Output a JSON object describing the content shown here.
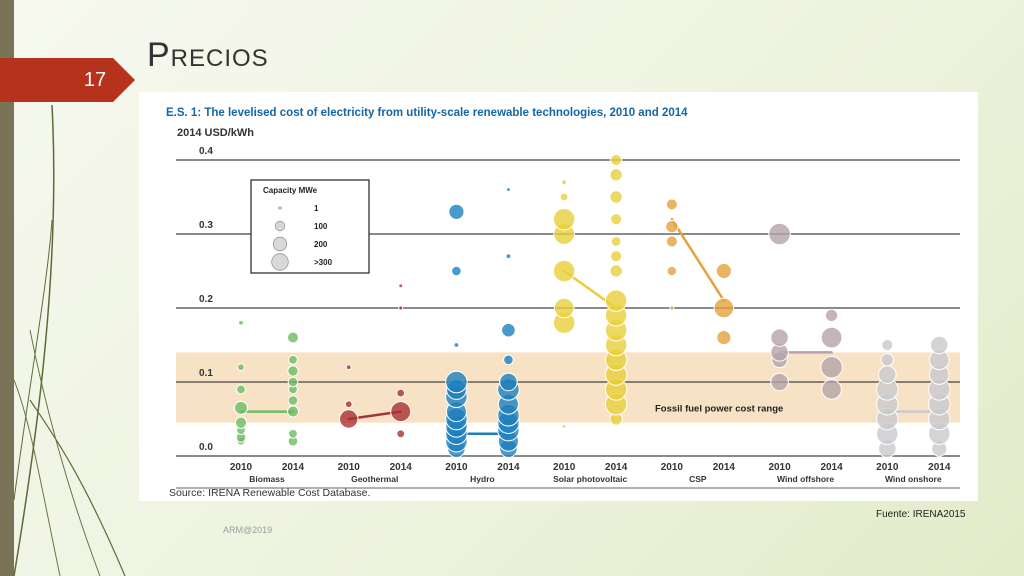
{
  "slide": {
    "number": "17",
    "title": "Precios",
    "footer": "ARM@2019",
    "source_note": "Fuente: IRENA2015"
  },
  "colors": {
    "biomass": "#6dbb62",
    "geothermal": "#a83232",
    "hydro": "#1b7fbd",
    "solar_pv": "#e8cf3a",
    "csp": "#e3a23c",
    "wind_offshore": "#b5a3a8",
    "wind_onshore": "#c9c9cc",
    "fossil_band": "#f8e2c6",
    "title_blue": "#1466a6",
    "accent_red": "#b6321d"
  },
  "chart_data": {
    "type": "scatter",
    "title": "E.S. 1: The levelised cost of electricity from utility-scale renewable technologies, 2010 and 2014",
    "ylabel": "2014 USD/kWh",
    "ylim": [
      0,
      0.4
    ],
    "yticks": [
      "0.0",
      "0.1",
      "0.2",
      "0.3",
      "0.4"
    ],
    "grid": true,
    "source": "Source: IRENA Renewable Cost Database.",
    "band": {
      "label": "Fossil fuel power cost range",
      "from": 0.045,
      "to": 0.14
    },
    "legend": {
      "title": "Capacity MWe",
      "position": "top-left",
      "items": [
        {
          "label": "1",
          "size": 1
        },
        {
          "label": "100",
          "size": 100
        },
        {
          "label": "200",
          "size": 200
        },
        {
          "label": ">300",
          "size": 300
        }
      ]
    },
    "technologies": [
      {
        "name": "Biomass",
        "color": "biomass",
        "avg2010": 0.06,
        "avg2014": 0.06,
        "years": [
          {
            "year": "2010",
            "points": [
              [
                0.02,
                40
              ],
              [
                0.025,
                60
              ],
              [
                0.035,
                50
              ],
              [
                0.045,
                80
              ],
              [
                0.065,
                110
              ],
              [
                0.09,
                50
              ],
              [
                0.12,
                30
              ],
              [
                0.18,
                15
              ]
            ]
          },
          {
            "year": "2014",
            "points": [
              [
                0.02,
                60
              ],
              [
                0.03,
                50
              ],
              [
                0.06,
                80
              ],
              [
                0.075,
                60
              ],
              [
                0.09,
                50
              ],
              [
                0.1,
                60
              ],
              [
                0.115,
                70
              ],
              [
                0.13,
                50
              ],
              [
                0.16,
                80
              ]
            ]
          }
        ]
      },
      {
        "name": "Geothermal",
        "color": "geothermal",
        "avg2010": 0.05,
        "avg2014": 0.06,
        "years": [
          {
            "year": "2010",
            "points": [
              [
                0.05,
                220
              ],
              [
                0.07,
                30
              ],
              [
                0.12,
                15
              ]
            ]
          },
          {
            "year": "2014",
            "points": [
              [
                0.03,
                40
              ],
              [
                0.06,
                260
              ],
              [
                0.085,
                40
              ],
              [
                0.2,
                10
              ],
              [
                0.23,
                10
              ]
            ]
          }
        ]
      },
      {
        "name": "Hydro",
        "color": "hydro",
        "avg2010": 0.03,
        "avg2014": 0.03,
        "years": [
          {
            "year": "2010",
            "points": [
              [
                0.01,
                200
              ],
              [
                0.02,
                300
              ],
              [
                0.03,
                300
              ],
              [
                0.04,
                300
              ],
              [
                0.05,
                300
              ],
              [
                0.06,
                260
              ],
              [
                0.08,
                300
              ],
              [
                0.09,
                260
              ],
              [
                0.1,
                300
              ],
              [
                0.15,
                15
              ],
              [
                0.25,
                60
              ],
              [
                0.33,
                150
              ]
            ]
          },
          {
            "year": "2014",
            "points": [
              [
                0.01,
                200
              ],
              [
                0.02,
                260
              ],
              [
                0.035,
                300
              ],
              [
                0.045,
                300
              ],
              [
                0.055,
                300
              ],
              [
                0.07,
                260
              ],
              [
                0.09,
                300
              ],
              [
                0.1,
                200
              ],
              [
                0.13,
                60
              ],
              [
                0.17,
                120
              ],
              [
                0.27,
                15
              ],
              [
                0.36,
                10
              ]
            ]
          }
        ]
      },
      {
        "name": "Solar photovoltaic",
        "color": "solar_pv",
        "avg2010": 0.25,
        "avg2014": 0.2,
        "years": [
          {
            "year": "2010",
            "points": [
              [
                0.04,
                10
              ],
              [
                0.18,
                300
              ],
              [
                0.2,
                250
              ],
              [
                0.25,
                300
              ],
              [
                0.3,
                280
              ],
              [
                0.32,
                300
              ],
              [
                0.35,
                40
              ],
              [
                0.37,
                15
              ]
            ]
          },
          {
            "year": "2014",
            "points": [
              [
                0.05,
                100
              ],
              [
                0.07,
                300
              ],
              [
                0.09,
                300
              ],
              [
                0.11,
                300
              ],
              [
                0.13,
                300
              ],
              [
                0.15,
                300
              ],
              [
                0.17,
                300
              ],
              [
                0.19,
                300
              ],
              [
                0.21,
                300
              ],
              [
                0.25,
                100
              ],
              [
                0.27,
                80
              ],
              [
                0.29,
                60
              ],
              [
                0.32,
                80
              ],
              [
                0.35,
                100
              ],
              [
                0.38,
                100
              ],
              [
                0.4,
                80
              ]
            ]
          }
        ]
      },
      {
        "name": "CSP",
        "color": "csp",
        "avg2010": 0.32,
        "avg2014": 0.21,
        "years": [
          {
            "year": "2010",
            "points": [
              [
                0.2,
                10
              ],
              [
                0.25,
                60
              ],
              [
                0.29,
                80
              ],
              [
                0.31,
                100
              ],
              [
                0.34,
                80
              ]
            ]
          },
          {
            "year": "2014",
            "points": [
              [
                0.16,
                130
              ],
              [
                0.2,
                250
              ],
              [
                0.25,
                150
              ]
            ]
          }
        ]
      },
      {
        "name": "Wind offshore",
        "color": "wind_offshore",
        "avg2010": 0.14,
        "avg2014": 0.14,
        "years": [
          {
            "year": "2010",
            "points": [
              [
                0.1,
                200
              ],
              [
                0.13,
                160
              ],
              [
                0.14,
                200
              ],
              [
                0.16,
                200
              ],
              [
                0.3,
                300
              ]
            ]
          },
          {
            "year": "2014",
            "points": [
              [
                0.09,
                250
              ],
              [
                0.12,
                300
              ],
              [
                0.16,
                280
              ],
              [
                0.19,
                100
              ]
            ]
          }
        ]
      },
      {
        "name": "Wind onshore",
        "color": "wind_onshore",
        "avg2010": 0.06,
        "avg2014": 0.06,
        "years": [
          {
            "year": "2010",
            "points": [
              [
                0.01,
                200
              ],
              [
                0.03,
                300
              ],
              [
                0.05,
                300
              ],
              [
                0.07,
                300
              ],
              [
                0.09,
                300
              ],
              [
                0.11,
                200
              ],
              [
                0.13,
                100
              ],
              [
                0.15,
                80
              ]
            ]
          },
          {
            "year": "2014",
            "points": [
              [
                0.01,
                150
              ],
              [
                0.03,
                300
              ],
              [
                0.05,
                300
              ],
              [
                0.07,
                300
              ],
              [
                0.09,
                300
              ],
              [
                0.11,
                250
              ],
              [
                0.13,
                250
              ],
              [
                0.15,
                200
              ]
            ]
          }
        ]
      }
    ]
  }
}
